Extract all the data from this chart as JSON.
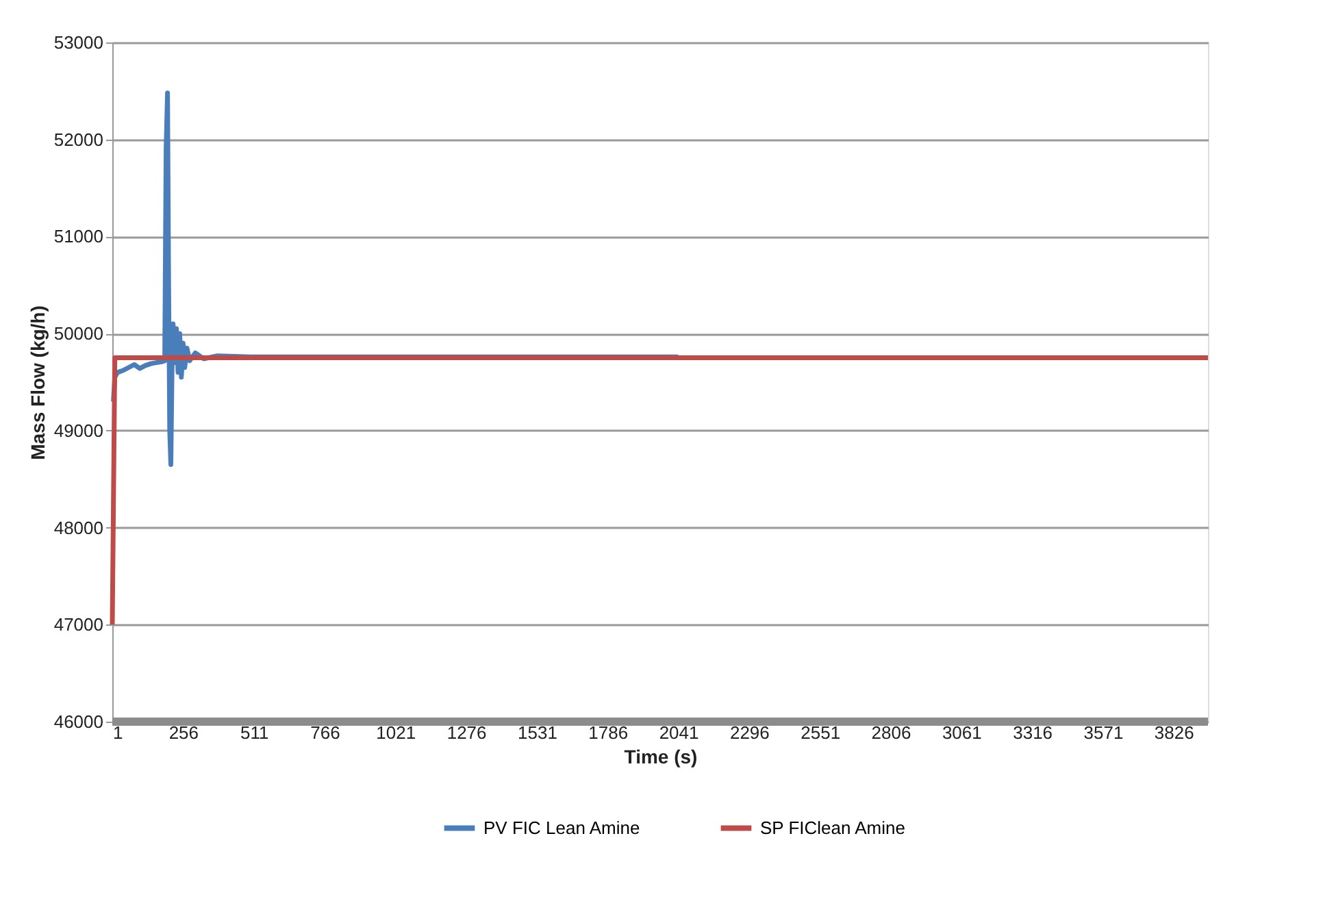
{
  "chart_data": {
    "type": "line",
    "xlabel": "Time (s)",
    "ylabel": "Mass Flow (kg/h)",
    "xlim": [
      1,
      3950
    ],
    "xticks": [
      1,
      256,
      511,
      766,
      1021,
      1276,
      1531,
      1786,
      2041,
      2296,
      2551,
      2806,
      3061,
      3316,
      3571,
      3826
    ],
    "ylim": [
      46000,
      53000
    ],
    "yticks": [
      46000,
      47000,
      48000,
      49000,
      50000,
      51000,
      52000,
      53000
    ],
    "grid": "y",
    "legend": "bottom",
    "marker": "none",
    "line_style": "solid",
    "series": [
      {
        "name": "PV FIC Lean Amine",
        "color": "#4a7ebb",
        "x": [
          5,
          10,
          20,
          40,
          60,
          80,
          100,
          120,
          140,
          160,
          180,
          190,
          195,
          200,
          204,
          208,
          212,
          216,
          220,
          226,
          232,
          238,
          244,
          250,
          256,
          262,
          270,
          280,
          300,
          330,
          380,
          500,
          1000,
          2041
        ],
        "values": [
          49300,
          49550,
          49600,
          49620,
          49650,
          49680,
          49640,
          49670,
          49690,
          49700,
          49710,
          49720,
          51900,
          52480,
          50500,
          49000,
          48650,
          49600,
          50100,
          49700,
          50050,
          49600,
          50000,
          49550,
          49900,
          49650,
          49850,
          49720,
          49800,
          49740,
          49770,
          49760,
          49760,
          49760
        ]
      },
      {
        "name": "SP FIClean Amine",
        "color": "#be4b48",
        "x": [
          1,
          10,
          3950
        ],
        "values": [
          47000,
          49750,
          49750
        ]
      }
    ]
  }
}
